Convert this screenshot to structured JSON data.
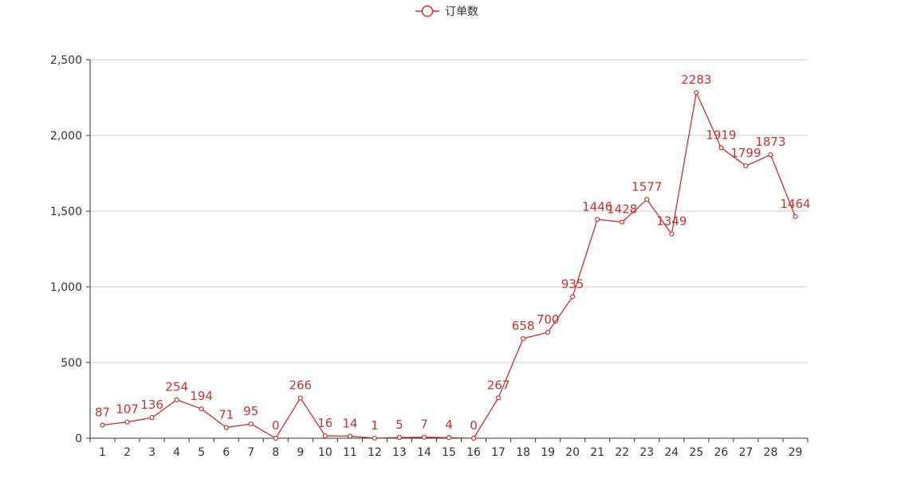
{
  "chart_data": {
    "type": "line",
    "title": "",
    "xlabel": "",
    "ylabel": "",
    "categories": [
      "1",
      "2",
      "3",
      "4",
      "5",
      "6",
      "7",
      "8",
      "9",
      "10",
      "11",
      "12",
      "13",
      "14",
      "15",
      "16",
      "17",
      "18",
      "19",
      "20",
      "21",
      "22",
      "23",
      "24",
      "25",
      "26",
      "27",
      "28",
      "29"
    ],
    "series": [
      {
        "name": "订单数",
        "color": "#c23531",
        "values": [
          87,
          107,
          136,
          254,
          194,
          71,
          95,
          0,
          266,
          16,
          14,
          1,
          5,
          7,
          4,
          0,
          267,
          658,
          700,
          935,
          1446,
          1428,
          1577,
          1349,
          2283,
          1919,
          1799,
          1873,
          1464
        ]
      }
    ],
    "ylim": [
      0,
      2500
    ],
    "yticks": [
      0,
      500,
      1000,
      1500,
      2000,
      2500
    ],
    "ytick_labels": [
      "0",
      "500",
      "1,000",
      "1,500",
      "2,000",
      "2,500"
    ],
    "grid": true,
    "legend_position": "top-center",
    "show_data_labels": true
  }
}
